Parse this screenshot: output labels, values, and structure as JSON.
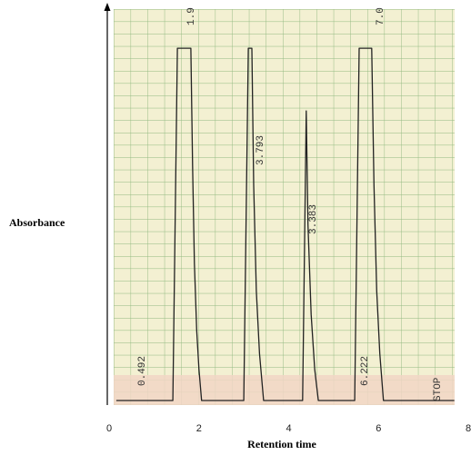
{
  "chart_data": {
    "type": "line",
    "x_label": "Retention time",
    "y_label": "Absorbance",
    "xlim": [
      0,
      8
    ],
    "xticks": [
      0,
      2,
      4,
      6,
      8
    ],
    "ylim": [
      0,
      100
    ],
    "series": [
      {
        "color": "#222222",
        "x": [
          0.16,
          1.42,
          1.52,
          1.82,
          1.86,
          1.9,
          1.95,
          2.0,
          2.06,
          3.0,
          3.1,
          3.18,
          3.22,
          3.28,
          3.35,
          3.44,
          4.31,
          4.39,
          4.43,
          4.5,
          4.58,
          4.66,
          5.47,
          5.57,
          5.85,
          5.9,
          5.96,
          6.03,
          6.11,
          7.69
        ],
        "values": [
          0,
          0,
          90,
          90,
          60,
          35,
          18,
          8,
          0,
          0,
          90,
          90,
          55,
          28,
          12,
          0,
          0,
          74,
          45,
          22,
          8,
          0,
          0,
          90,
          90,
          55,
          28,
          12,
          0,
          0
        ]
      }
    ],
    "annotations": [
      "0.492",
      "1.9",
      "3.793",
      "3.383",
      "6.222",
      "7.0",
      "STOP"
    ]
  }
}
